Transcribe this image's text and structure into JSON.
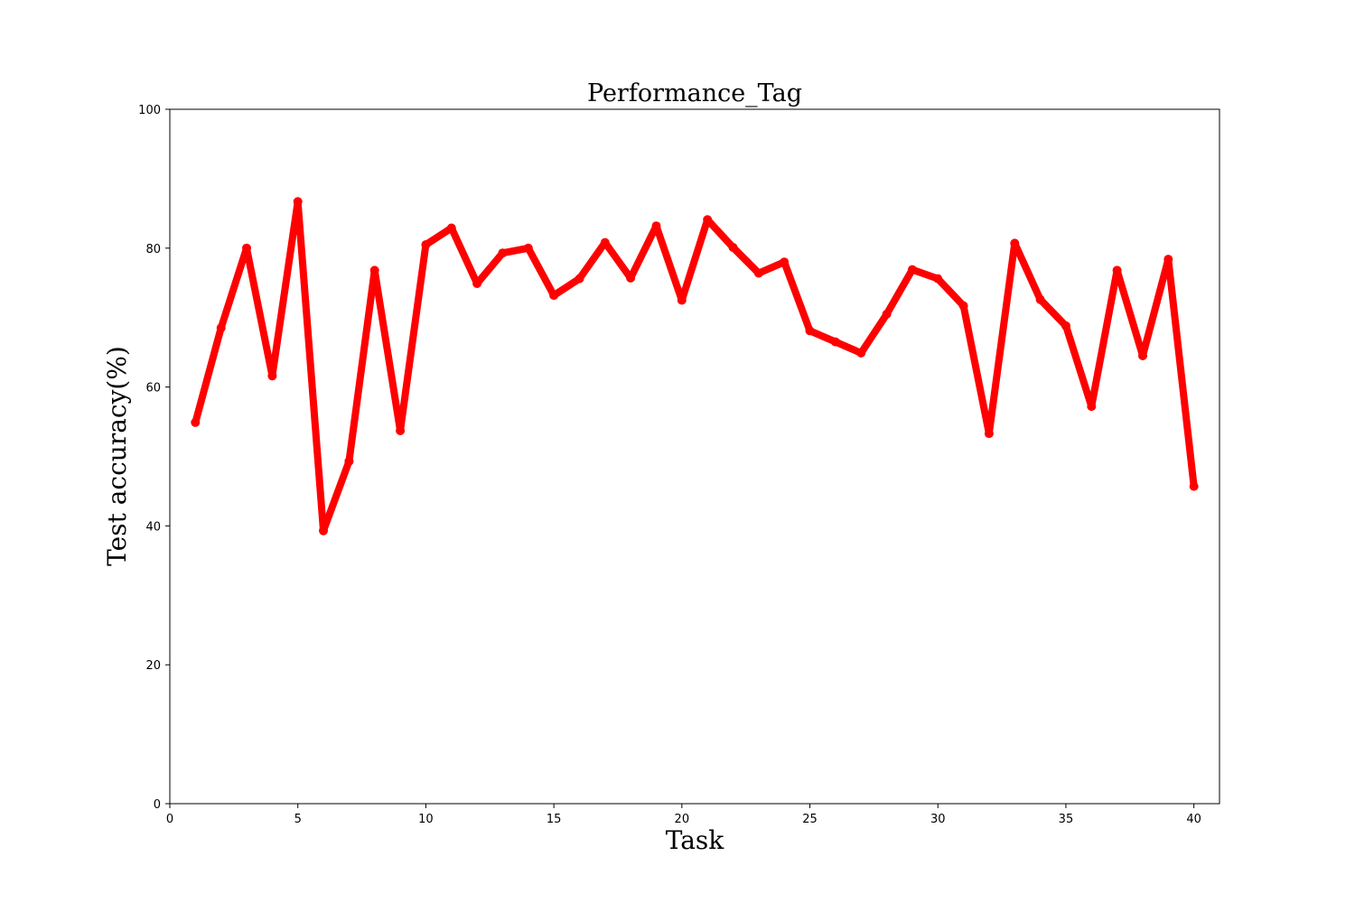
{
  "chart_data": {
    "type": "line",
    "title": "Performance_Tag",
    "xlabel": "Task",
    "ylabel": "Test accuracy(%)",
    "xlim": [
      0,
      41
    ],
    "ylim": [
      0,
      100
    ],
    "xticks": [
      0,
      5,
      10,
      15,
      20,
      25,
      30,
      35,
      40
    ],
    "yticks": [
      0,
      20,
      40,
      60,
      80,
      100
    ],
    "grid": false,
    "line_color": "#ff0000",
    "x": [
      1,
      2,
      3,
      4,
      5,
      6,
      7,
      8,
      9,
      10,
      11,
      12,
      13,
      14,
      15,
      16,
      17,
      18,
      19,
      20,
      21,
      22,
      23,
      24,
      25,
      26,
      27,
      28,
      29,
      30,
      31,
      32,
      33,
      34,
      35,
      36,
      37,
      38,
      39,
      40
    ],
    "values": [
      54.9,
      68.5,
      80.0,
      61.6,
      86.7,
      39.3,
      49.3,
      76.8,
      53.7,
      80.5,
      82.9,
      74.9,
      79.3,
      80.0,
      73.2,
      75.6,
      80.8,
      75.7,
      83.2,
      72.5,
      84.1,
      80.1,
      76.4,
      78.0,
      68.1,
      66.5,
      64.9,
      70.5,
      76.9,
      75.6,
      71.7,
      53.3,
      80.7,
      72.6,
      68.8,
      57.2,
      76.8,
      64.5,
      78.4,
      45.7
    ]
  }
}
